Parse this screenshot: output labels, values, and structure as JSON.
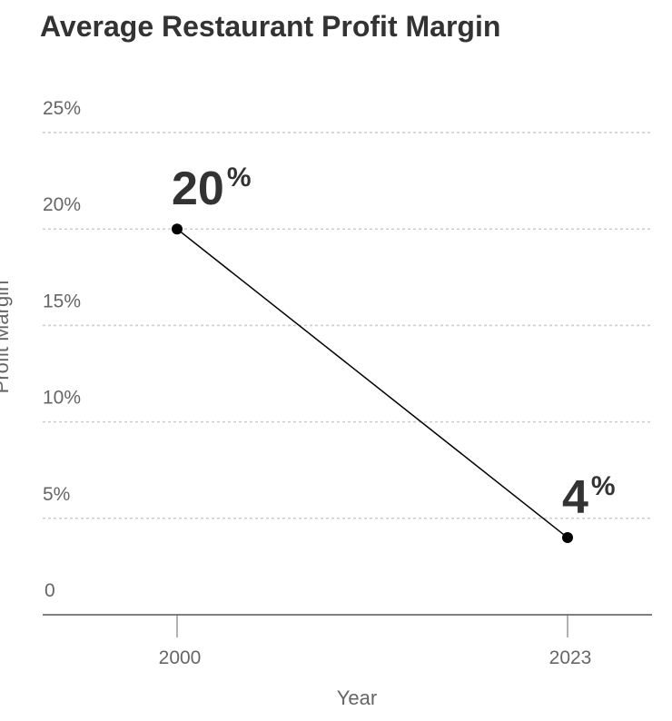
{
  "chart_data": {
    "type": "line",
    "title": "Average Restaurant Profit Margin",
    "xlabel": "Year",
    "ylabel": "Profit Margin",
    "x": [
      2000,
      2023
    ],
    "x_tick_labels": [
      "2000",
      "2023"
    ],
    "series": [
      {
        "values": [
          20,
          4
        ]
      }
    ],
    "data_labels": [
      {
        "value": "20",
        "unit": "%"
      },
      {
        "value": "4",
        "unit": "%"
      }
    ],
    "ylim": [
      0,
      25
    ],
    "y_ticks": [
      0,
      5,
      10,
      15,
      20,
      25
    ],
    "y_tick_labels": [
      "0",
      "5%",
      "10%",
      "15%",
      "20%",
      "25%"
    ],
    "grid": "horizontal-dashed",
    "line_color": "#000000",
    "point_color": "#000000",
    "text_color": "#333333",
    "grid_color": "#cccccc"
  }
}
